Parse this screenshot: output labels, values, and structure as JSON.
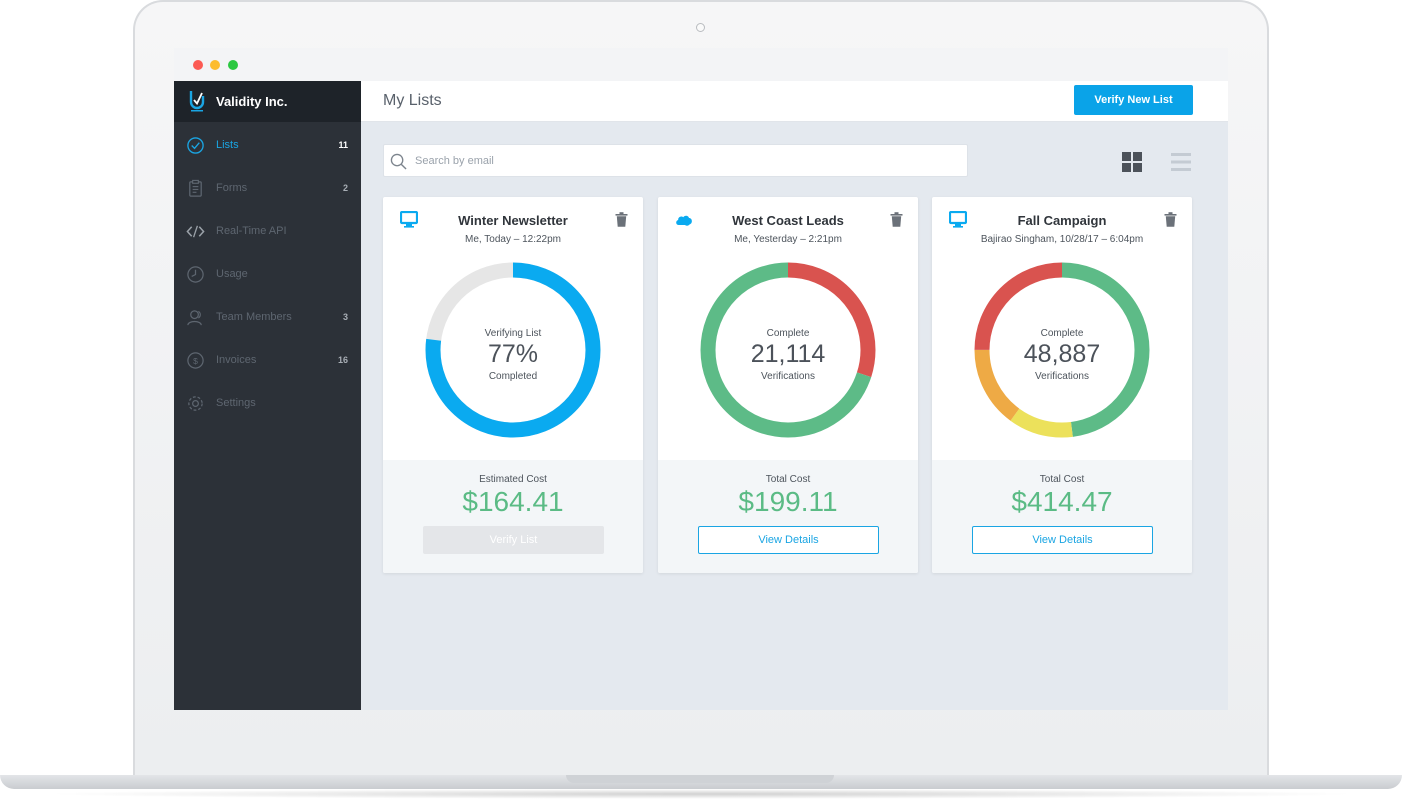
{
  "window": {
    "controls": [
      "close",
      "minimize",
      "zoom"
    ]
  },
  "sidebar": {
    "brand": "Validity Inc.",
    "items": [
      {
        "label": "Lists",
        "count": "11",
        "icon": "check-circle-icon",
        "active": true
      },
      {
        "label": "Forms",
        "count": "2",
        "icon": "clipboard-icon"
      },
      {
        "label": "Real-Time API",
        "count": "",
        "icon": "code-icon"
      },
      {
        "label": "Usage",
        "count": "",
        "icon": "clock-icon"
      },
      {
        "label": "Team Members",
        "count": "3",
        "icon": "team-icon"
      },
      {
        "label": "Invoices",
        "count": "16",
        "icon": "dollar-circle-icon"
      },
      {
        "label": "Settings",
        "count": "",
        "icon": "gear-icon"
      }
    ]
  },
  "header": {
    "title": "My Lists",
    "verify_new_label": "Verify New List"
  },
  "search": {
    "placeholder": "Search by email"
  },
  "cards": [
    {
      "title": "Winter Newsletter",
      "meta": "Me, Today – 12:22pm",
      "source_icon": "monitor-icon",
      "donut_top": "Verifying List",
      "donut_value": "77%",
      "donut_bottom": "Completed",
      "cost_label": "Estimated Cost",
      "cost_value": "$164.41",
      "button_label": "Verify List",
      "progress": 0.77,
      "colors": {
        "progress": "#0aaaf0",
        "track": "#e6e6e6"
      }
    },
    {
      "title": "West Coast Leads",
      "meta": "Me, Yesterday – 2:21pm",
      "source_icon": "salesforce-cloud-icon",
      "donut_top": "Complete",
      "donut_value": "21,114",
      "donut_bottom": "Verifications",
      "cost_label": "Total Cost",
      "cost_value": "$199.11",
      "button_label": "View Details",
      "segments": [
        {
          "color": "#d9534f",
          "fraction": 0.3
        },
        {
          "color": "#5dbb87",
          "fraction": 0.7
        }
      ]
    },
    {
      "title": "Fall Campaign",
      "meta": "Bajirao Singham, 10/28/17 – 6:04pm",
      "source_icon": "monitor-icon",
      "donut_top": "Complete",
      "donut_value": "48,887",
      "donut_bottom": "Verifications",
      "cost_label": "Total Cost",
      "cost_value": "$414.47",
      "button_label": "View Details",
      "segments": [
        {
          "color": "#5dbb87",
          "fraction": 0.48
        },
        {
          "color": "#ece15b",
          "fraction": 0.12
        },
        {
          "color": "#eeaa45",
          "fraction": 0.15
        },
        {
          "color": "#d9534f",
          "fraction": 0.25
        }
      ]
    }
  ]
}
